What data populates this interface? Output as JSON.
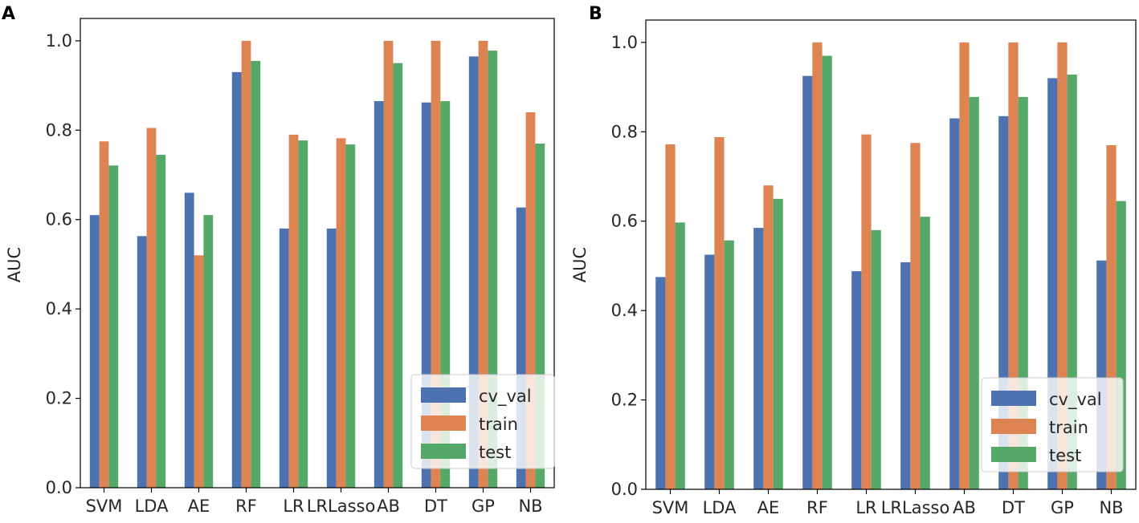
{
  "chart_data": [
    {
      "panel_label": "A",
      "type": "bar",
      "ylabel": "AUC",
      "xlabel": "",
      "ylim": [
        0,
        1.05
      ],
      "yticks": [
        0.0,
        0.2,
        0.4,
        0.6,
        0.8,
        1.0
      ],
      "ytick_labels": [
        "0.0",
        "0.2",
        "0.4",
        "0.6",
        "0.8",
        "1.0"
      ],
      "categories": [
        "SVM",
        "LDA",
        "AE",
        "RF",
        "LR",
        "LRLasso",
        "AB",
        "DT",
        "GP",
        "NB"
      ],
      "series": [
        {
          "name": "cv_val",
          "color": "#4c72b0",
          "values": [
            0.61,
            0.563,
            0.66,
            0.93,
            0.58,
            0.58,
            0.865,
            0.862,
            0.965,
            0.627
          ]
        },
        {
          "name": "train",
          "color": "#dd8452",
          "values": [
            0.775,
            0.805,
            0.52,
            1.0,
            0.79,
            0.782,
            1.0,
            1.0,
            1.0,
            0.84
          ]
        },
        {
          "name": "test",
          "color": "#55a868",
          "values": [
            0.721,
            0.745,
            0.61,
            0.955,
            0.777,
            0.768,
            0.95,
            0.865,
            0.978,
            0.77
          ]
        }
      ],
      "legend": {
        "location": "lower-right",
        "entries": [
          "cv_val",
          "train",
          "test"
        ]
      }
    },
    {
      "panel_label": "B",
      "type": "bar",
      "ylabel": "AUC",
      "xlabel": "",
      "ylim": [
        0,
        1.05
      ],
      "yticks": [
        0.0,
        0.2,
        0.4,
        0.6,
        0.8,
        1.0
      ],
      "ytick_labels": [
        "0.0",
        "0.2",
        "0.4",
        "0.6",
        "0.8",
        "1.0"
      ],
      "categories": [
        "SVM",
        "LDA",
        "AE",
        "RF",
        "LR",
        "LRLasso",
        "AB",
        "DT",
        "GP",
        "NB"
      ],
      "series": [
        {
          "name": "cv_val",
          "color": "#4c72b0",
          "values": [
            0.475,
            0.525,
            0.585,
            0.925,
            0.488,
            0.508,
            0.83,
            0.835,
            0.92,
            0.512
          ]
        },
        {
          "name": "train",
          "color": "#dd8452",
          "values": [
            0.772,
            0.788,
            0.68,
            1.0,
            0.794,
            0.775,
            1.0,
            1.0,
            1.0,
            0.77
          ]
        },
        {
          "name": "test",
          "color": "#55a868",
          "values": [
            0.597,
            0.557,
            0.65,
            0.97,
            0.58,
            0.61,
            0.878,
            0.878,
            0.928,
            0.645
          ]
        }
      ],
      "legend": {
        "location": "lower-right",
        "entries": [
          "cv_val",
          "train",
          "test"
        ]
      }
    }
  ]
}
